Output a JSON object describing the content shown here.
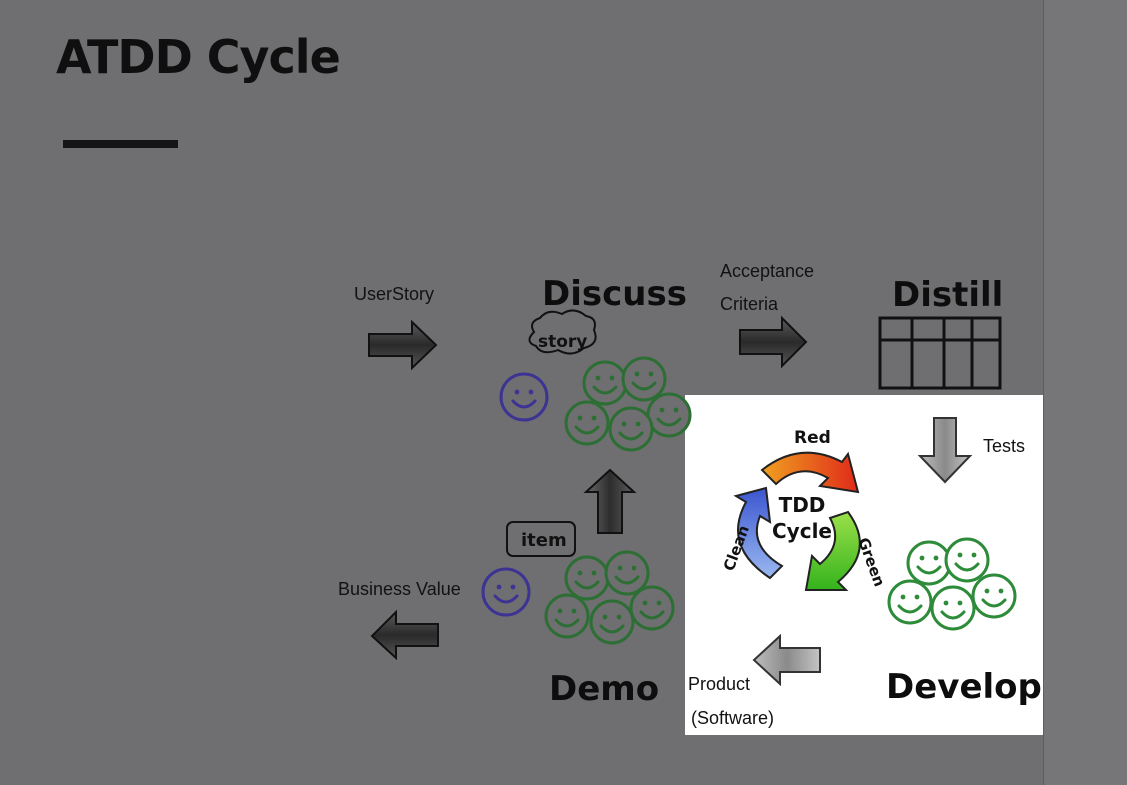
{
  "slide": {
    "title": "ATDD Cycle"
  },
  "stages": {
    "discuss": "Discuss",
    "distill": "Distill",
    "develop": "Develop",
    "demo": "Demo"
  },
  "flows": {
    "user_story": "UserStory",
    "acceptance_line1": "Acceptance",
    "acceptance_line2": "Criteria",
    "tests": "Tests",
    "product_line1": "Product",
    "product_line2": "(Software)",
    "business_value": "Business Value"
  },
  "bubbles": {
    "story": "story",
    "item": "item"
  },
  "tdd": {
    "red": "Red",
    "green": "Green",
    "clean": "Clean",
    "center_line1": "TDD",
    "center_line2": "Cycle"
  },
  "colors": {
    "team": "#2e8b3a",
    "customer": "#4a3fa0",
    "red_arrow": "#e8431e",
    "green_arrow": "#52c41a",
    "blue_arrow": "#4a66d8",
    "gray_arrow": "#4a4a4a"
  }
}
